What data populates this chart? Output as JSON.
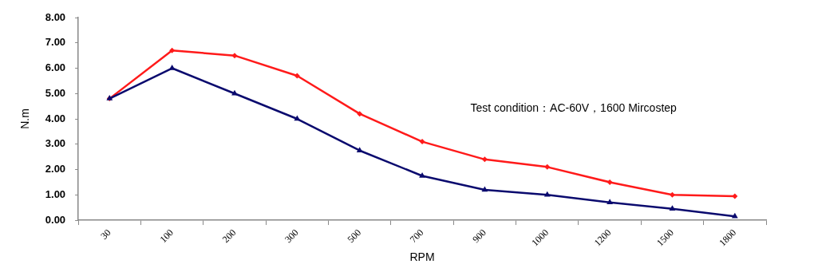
{
  "chart_data": {
    "type": "line",
    "xlabel": "RPM",
    "ylabel": "N.m",
    "categories": [
      "30",
      "100",
      "200",
      "300",
      "500",
      "700",
      "900",
      "1000",
      "1200",
      "1500",
      "1800"
    ],
    "series": [
      {
        "color": "#ff1a1a",
        "marker": "diamond",
        "values": [
          4.8,
          6.7,
          6.5,
          5.7,
          4.2,
          3.1,
          2.4,
          2.1,
          1.5,
          1.0,
          0.95
        ]
      },
      {
        "color": "#0a0a6e",
        "marker": "triangle",
        "values": [
          4.8,
          6.0,
          5.0,
          4.0,
          2.75,
          1.75,
          1.2,
          1.0,
          0.7,
          0.45,
          0.15
        ]
      }
    ],
    "ylim": [
      0,
      8
    ],
    "yticks": [
      {
        "value": 0,
        "label": "0.00"
      },
      {
        "value": 1,
        "label": "1.00"
      },
      {
        "value": 2,
        "label": "2.00"
      },
      {
        "value": 3,
        "label": "3.00"
      },
      {
        "value": 4,
        "label": "4.00"
      },
      {
        "value": 5,
        "label": "5.00"
      },
      {
        "value": 6,
        "label": "6.00"
      },
      {
        "value": 7,
        "label": "7.00"
      },
      {
        "value": 8,
        "label": "8.00"
      }
    ],
    "grid": false,
    "legend": false,
    "line_style": "solid",
    "annotations": [
      "Test condition：AC-60V，1600 Mircostep"
    ]
  }
}
